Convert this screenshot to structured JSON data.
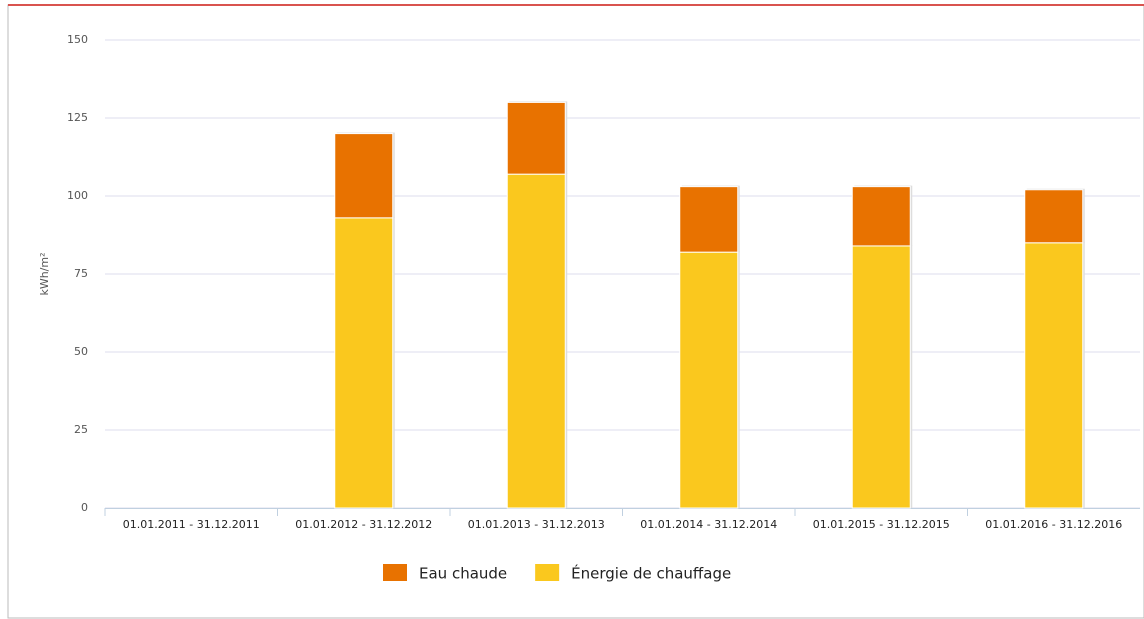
{
  "chart_data": {
    "type": "stacked-bar",
    "y_label": "kWh/m²",
    "categories": [
      "01.01.2011 - 31.12.2011",
      "01.01.2012 - 31.12.2012",
      "01.01.2013 - 31.12.2013",
      "01.01.2014 - 31.12.2014",
      "01.01.2015 - 31.12.2015",
      "01.01.2016 - 31.12.2016"
    ],
    "series": [
      {
        "name": "Énergie de chauffage",
        "color": "#fac81e",
        "values": [
          null,
          93,
          107,
          82,
          84,
          85
        ]
      },
      {
        "name": "Eau chaude",
        "color": "#e87200",
        "values": [
          null,
          27,
          23,
          21,
          19,
          17
        ]
      }
    ],
    "ylim": [
      0,
      150
    ],
    "yticks": [
      0,
      25,
      50,
      75,
      100,
      125,
      150
    ],
    "grid": true
  }
}
